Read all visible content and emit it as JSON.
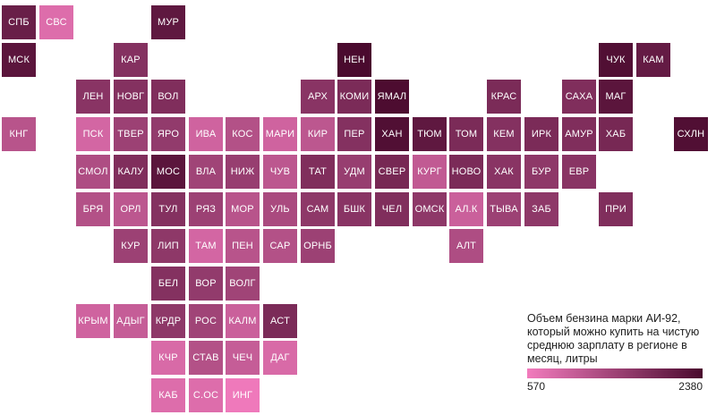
{
  "chart_data": {
    "type": "heatmap",
    "legend": {
      "title": "Объем бензина марки АИ-92, который можно купить на чистую среднюю зарплату в регионе в месяц, литры",
      "min": 570,
      "max": 2380,
      "min_label": "570",
      "max_label": "2380"
    },
    "colors": {
      "low": "#f27bbd",
      "high": "#4a0a2e"
    },
    "regions": [
      {
        "label": "СПБ",
        "row": 0,
        "col": 0,
        "value": 2050
      },
      {
        "label": "СВС",
        "row": 0,
        "col": 1,
        "value": 800
      },
      {
        "label": "МУР",
        "row": 0,
        "col": 4,
        "value": 2150
      },
      {
        "label": "МСК",
        "row": 1,
        "col": 0,
        "value": 2200
      },
      {
        "label": "КАР",
        "row": 1,
        "col": 3,
        "value": 1750
      },
      {
        "label": "НЕН",
        "row": 1,
        "col": 9,
        "value": 2380
      },
      {
        "label": "ЧУК",
        "row": 1,
        "col": 16,
        "value": 2300
      },
      {
        "label": "КАМ",
        "row": 1,
        "col": 17,
        "value": 2100
      },
      {
        "label": "ЛЕН",
        "row": 2,
        "col": 2,
        "value": 1700
      },
      {
        "label": "НОВГ",
        "row": 2,
        "col": 3,
        "value": 1750
      },
      {
        "label": "ВОЛ",
        "row": 2,
        "col": 4,
        "value": 1800
      },
      {
        "label": "АРХ",
        "row": 2,
        "col": 8,
        "value": 1700
      },
      {
        "label": "КОМИ",
        "row": 2,
        "col": 9,
        "value": 1850
      },
      {
        "label": "ЯМАЛ",
        "row": 2,
        "col": 10,
        "value": 2350
      },
      {
        "label": "КРАС",
        "row": 2,
        "col": 13,
        "value": 1850
      },
      {
        "label": "САХА",
        "row": 2,
        "col": 15,
        "value": 1800
      },
      {
        "label": "МАГ",
        "row": 2,
        "col": 16,
        "value": 2200
      },
      {
        "label": "КНГ",
        "row": 3,
        "col": 0,
        "value": 1200
      },
      {
        "label": "ПСК",
        "row": 3,
        "col": 2,
        "value": 900
      },
      {
        "label": "ТВЕР",
        "row": 3,
        "col": 3,
        "value": 1500
      },
      {
        "label": "ЯРО",
        "row": 3,
        "col": 4,
        "value": 1600
      },
      {
        "label": "ИВА",
        "row": 3,
        "col": 5,
        "value": 950
      },
      {
        "label": "КОС",
        "row": 3,
        "col": 6,
        "value": 1250
      },
      {
        "label": "МАРИ",
        "row": 3,
        "col": 7,
        "value": 950
      },
      {
        "label": "КИР",
        "row": 3,
        "col": 8,
        "value": 1150
      },
      {
        "label": "ПЕР",
        "row": 3,
        "col": 9,
        "value": 1750
      },
      {
        "label": "ХАН",
        "row": 3,
        "col": 10,
        "value": 2300
      },
      {
        "label": "ТЮМ",
        "row": 3,
        "col": 11,
        "value": 2150
      },
      {
        "label": "ТОМ",
        "row": 3,
        "col": 12,
        "value": 1850
      },
      {
        "label": "КЕМ",
        "row": 3,
        "col": 13,
        "value": 1750
      },
      {
        "label": "ИРК",
        "row": 3,
        "col": 14,
        "value": 1850
      },
      {
        "label": "АМУР",
        "row": 3,
        "col": 15,
        "value": 1800
      },
      {
        "label": "ХАБ",
        "row": 3,
        "col": 16,
        "value": 1900
      },
      {
        "label": "СХЛН",
        "row": 3,
        "col": 18,
        "value": 2300
      },
      {
        "label": "СМОЛ",
        "row": 4,
        "col": 2,
        "value": 1300
      },
      {
        "label": "КАЛУ",
        "row": 4,
        "col": 3,
        "value": 1800
      },
      {
        "label": "МОС",
        "row": 4,
        "col": 4,
        "value": 2200
      },
      {
        "label": "ВЛА",
        "row": 4,
        "col": 5,
        "value": 1450
      },
      {
        "label": "НИЖ",
        "row": 4,
        "col": 6,
        "value": 1550
      },
      {
        "label": "ЧУВ",
        "row": 4,
        "col": 7,
        "value": 1150
      },
      {
        "label": "ТАТ",
        "row": 4,
        "col": 8,
        "value": 1800
      },
      {
        "label": "УДМ",
        "row": 4,
        "col": 9,
        "value": 1550
      },
      {
        "label": "СВЕР",
        "row": 4,
        "col": 10,
        "value": 1900
      },
      {
        "label": "КУРГ",
        "row": 4,
        "col": 11,
        "value": 1100
      },
      {
        "label": "НОВО",
        "row": 4,
        "col": 12,
        "value": 1850
      },
      {
        "label": "ХАК",
        "row": 4,
        "col": 13,
        "value": 1700
      },
      {
        "label": "БУР",
        "row": 4,
        "col": 14,
        "value": 1650
      },
      {
        "label": "ЕВР",
        "row": 4,
        "col": 15,
        "value": 1700
      },
      {
        "label": "БРЯ",
        "row": 5,
        "col": 2,
        "value": 1250
      },
      {
        "label": "ОРЛ",
        "row": 5,
        "col": 3,
        "value": 1150
      },
      {
        "label": "ТУЛ",
        "row": 5,
        "col": 4,
        "value": 1750
      },
      {
        "label": "РЯЗ",
        "row": 5,
        "col": 5,
        "value": 1500
      },
      {
        "label": "МОР",
        "row": 5,
        "col": 6,
        "value": 1200
      },
      {
        "label": "УЛЬ",
        "row": 5,
        "col": 7,
        "value": 1350
      },
      {
        "label": "САМ",
        "row": 5,
        "col": 8,
        "value": 1650
      },
      {
        "label": "БШК",
        "row": 5,
        "col": 9,
        "value": 1700
      },
      {
        "label": "ЧЕЛ",
        "row": 5,
        "col": 10,
        "value": 1800
      },
      {
        "label": "ОМСК",
        "row": 5,
        "col": 11,
        "value": 1650
      },
      {
        "label": "АЛ.К",
        "row": 5,
        "col": 12,
        "value": 1000
      },
      {
        "label": "ТЫВА",
        "row": 5,
        "col": 13,
        "value": 1500
      },
      {
        "label": "ЗАБ",
        "row": 5,
        "col": 14,
        "value": 1650
      },
      {
        "label": "ПРИ",
        "row": 5,
        "col": 16,
        "value": 1800
      },
      {
        "label": "КУР",
        "row": 6,
        "col": 3,
        "value": 1500
      },
      {
        "label": "ЛИП",
        "row": 6,
        "col": 4,
        "value": 1650
      },
      {
        "label": "ТАМ",
        "row": 6,
        "col": 5,
        "value": 900
      },
      {
        "label": "ПЕН",
        "row": 6,
        "col": 6,
        "value": 1200
      },
      {
        "label": "САР",
        "row": 6,
        "col": 7,
        "value": 1250
      },
      {
        "label": "ОРНБ",
        "row": 6,
        "col": 8,
        "value": 1500
      },
      {
        "label": "АЛТ",
        "row": 6,
        "col": 12,
        "value": 1300
      },
      {
        "label": "БЕЛ",
        "row": 7,
        "col": 4,
        "value": 1750
      },
      {
        "label": "ВОР",
        "row": 7,
        "col": 5,
        "value": 1600
      },
      {
        "label": "ВОЛГ",
        "row": 7,
        "col": 6,
        "value": 1450
      },
      {
        "label": "КРЫМ",
        "row": 8,
        "col": 2,
        "value": 950
      },
      {
        "label": "АДЫГ",
        "row": 8,
        "col": 3,
        "value": 1050
      },
      {
        "label": "КРДР",
        "row": 8,
        "col": 4,
        "value": 1650
      },
      {
        "label": "РОС",
        "row": 8,
        "col": 5,
        "value": 1450
      },
      {
        "label": "КАЛМ",
        "row": 8,
        "col": 6,
        "value": 1000
      },
      {
        "label": "АСТ",
        "row": 8,
        "col": 7,
        "value": 1850
      },
      {
        "label": "КЧР",
        "row": 9,
        "col": 4,
        "value": 850
      },
      {
        "label": "СТАВ",
        "row": 9,
        "col": 5,
        "value": 1250
      },
      {
        "label": "ЧЕЧ",
        "row": 9,
        "col": 6,
        "value": 1050
      },
      {
        "label": "ДАГ",
        "row": 9,
        "col": 7,
        "value": 850
      },
      {
        "label": "КАБ",
        "row": 10,
        "col": 4,
        "value": 800
      },
      {
        "label": "С.ОС",
        "row": 10,
        "col": 5,
        "value": 800
      },
      {
        "label": "ИНГ",
        "row": 10,
        "col": 6,
        "value": 600
      }
    ]
  }
}
